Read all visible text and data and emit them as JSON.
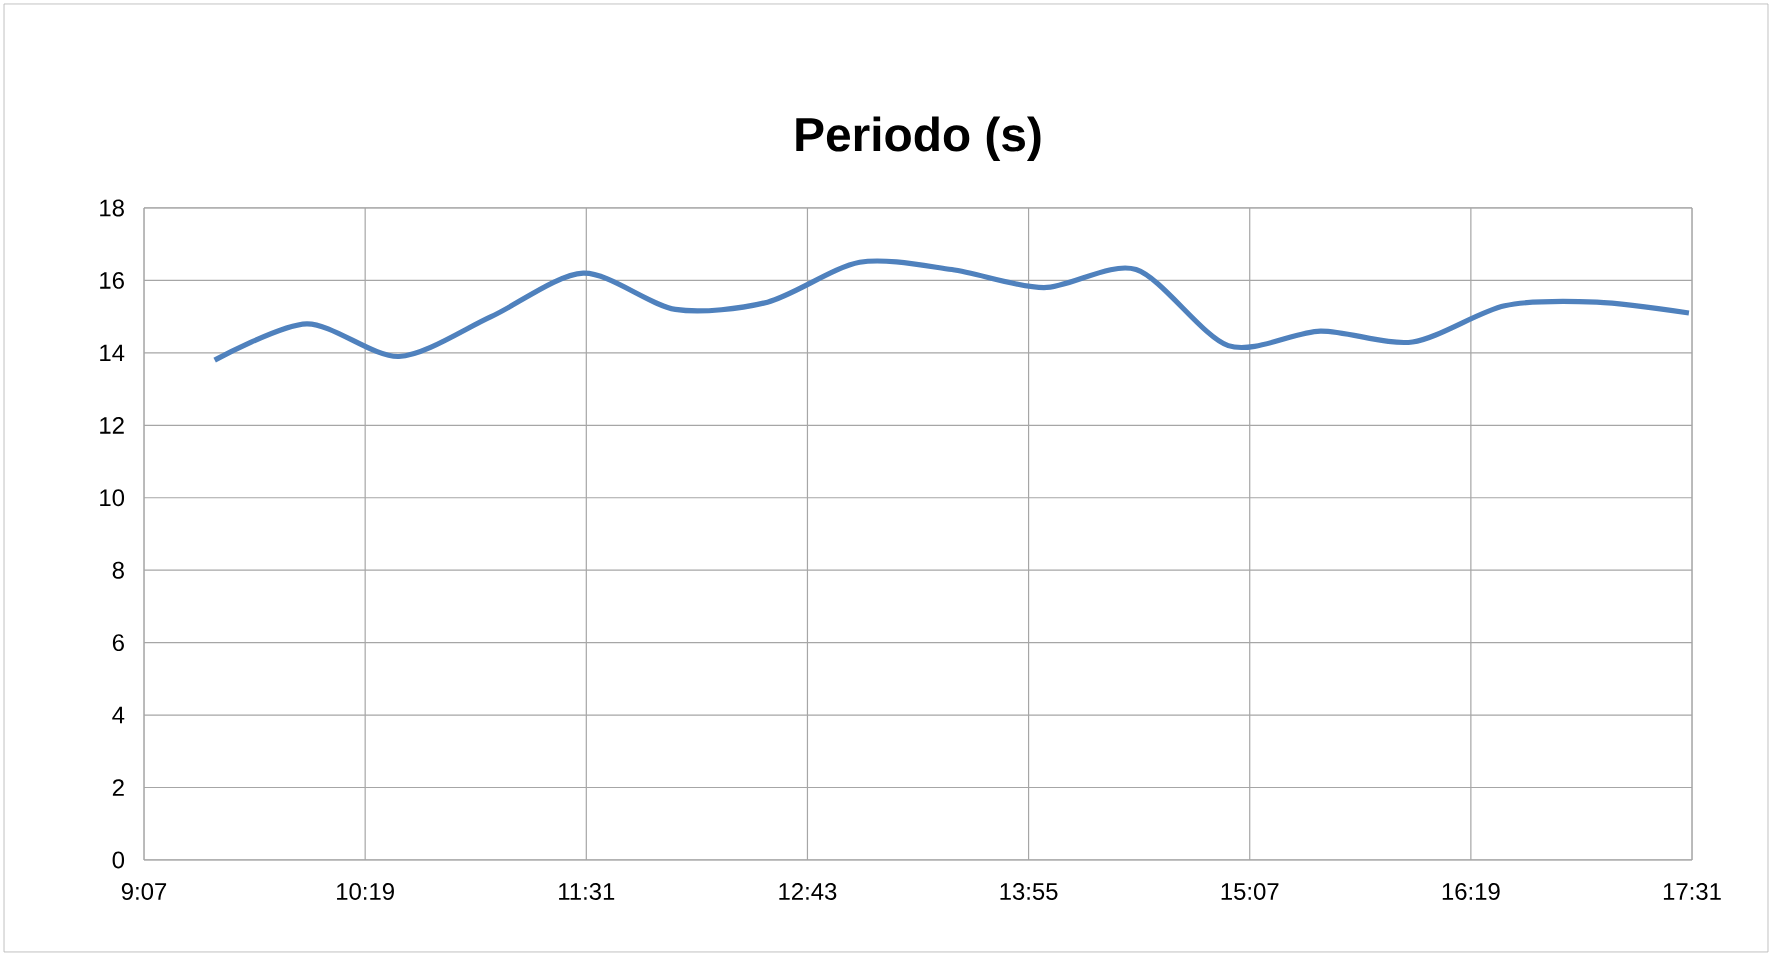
{
  "chart_data": {
    "type": "line",
    "title": "Periodo (s)",
    "x": [
      9.5,
      10,
      10.5,
      11,
      11.5,
      12,
      12.5,
      13,
      13.5,
      14,
      14.5,
      15,
      15.5,
      16,
      16.5,
      17,
      17.5
    ],
    "series": [
      {
        "color": "#4f81bd",
        "values": [
          13.8,
          14.8,
          13.9,
          15.0,
          16.2,
          15.2,
          15.4,
          16.5,
          16.3,
          15.8,
          16.3,
          14.2,
          14.6,
          14.3,
          15.3,
          15.4,
          15.1
        ]
      }
    ],
    "xlim": [
      9.1167,
      17.5167
    ],
    "xticks": [
      {
        "value": 9.1167,
        "label": "9:07"
      },
      {
        "value": 10.3167,
        "label": "10:19"
      },
      {
        "value": 11.5167,
        "label": "11:31"
      },
      {
        "value": 12.7167,
        "label": "12:43"
      },
      {
        "value": 13.9167,
        "label": "13:55"
      },
      {
        "value": 15.1167,
        "label": "15:07"
      },
      {
        "value": 16.3167,
        "label": "16:19"
      },
      {
        "value": 17.5167,
        "label": "17:31"
      }
    ],
    "ylim": [
      0,
      18
    ],
    "yticks": [
      0,
      2,
      4,
      6,
      8,
      10,
      12,
      14,
      16,
      18
    ],
    "grid": true,
    "marker": "none",
    "line_style": "solid"
  }
}
